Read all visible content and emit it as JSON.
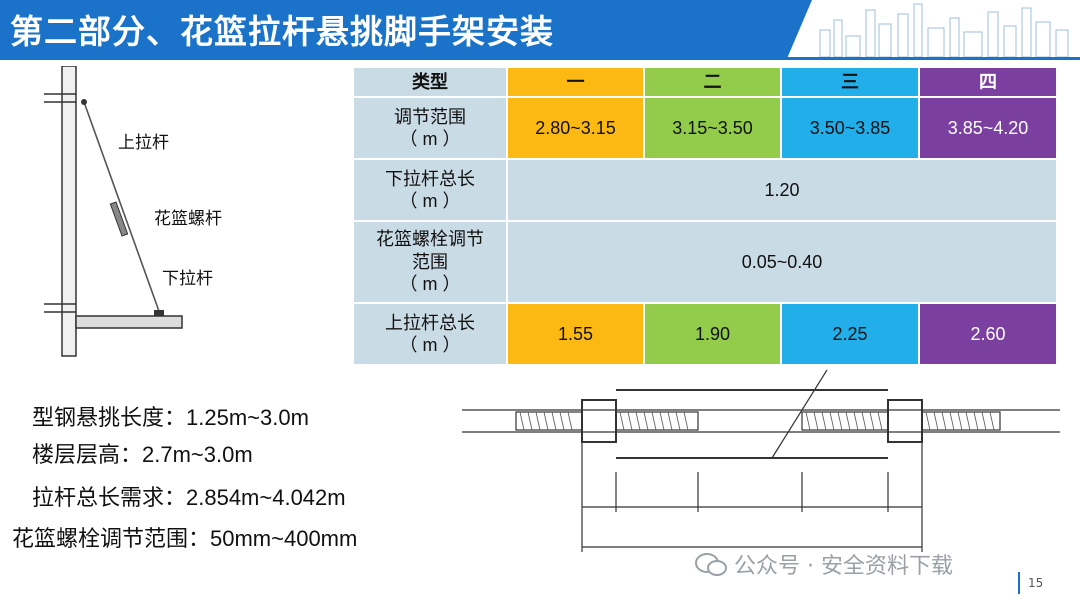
{
  "title": "第二部分、花篮拉杆悬挑脚手架安装",
  "diagram_labels": {
    "upper": "上拉杆",
    "turnbuckle": "花篮螺杆",
    "lower": "下拉杆"
  },
  "table": {
    "header": {
      "type": "类型",
      "cols": [
        "一",
        "二",
        "三",
        "四"
      ]
    },
    "rows": {
      "adjust_range": {
        "label": "调节范围",
        "unit": "（ m ）",
        "values": [
          "2.80~3.15",
          "3.15~3.50",
          "3.50~3.85",
          "3.85~4.20"
        ]
      },
      "lower_len": {
        "label": "下拉杆总长",
        "unit": "（ m ）",
        "value": "1.20"
      },
      "bolt_range": {
        "label1": "花篮螺栓调节",
        "label2": "范围",
        "unit": "（ m ）",
        "value": "0.05~0.40"
      },
      "upper_len": {
        "label": "上拉杆总长",
        "unit": "（ m ）",
        "values": [
          "1.55",
          "1.90",
          "2.25",
          "2.60"
        ]
      }
    }
  },
  "notes": [
    "型钢悬挑长度：1.25m~3.0m",
    "楼层层高：2.7m~3.0m",
    "拉杆总长需求：2.854m~4.042m",
    "花篮螺栓调节范围：50mm~400mm"
  ],
  "watermark": "公众号 · 安全资料下载",
  "page_number": "15",
  "colors": {
    "title_bg": "#1a73c8",
    "type1": "#fdb913",
    "type2": "#92cc4a",
    "type3": "#22aee8",
    "type4": "#7b3fa0",
    "label_bg": "#c9dbe5"
  }
}
